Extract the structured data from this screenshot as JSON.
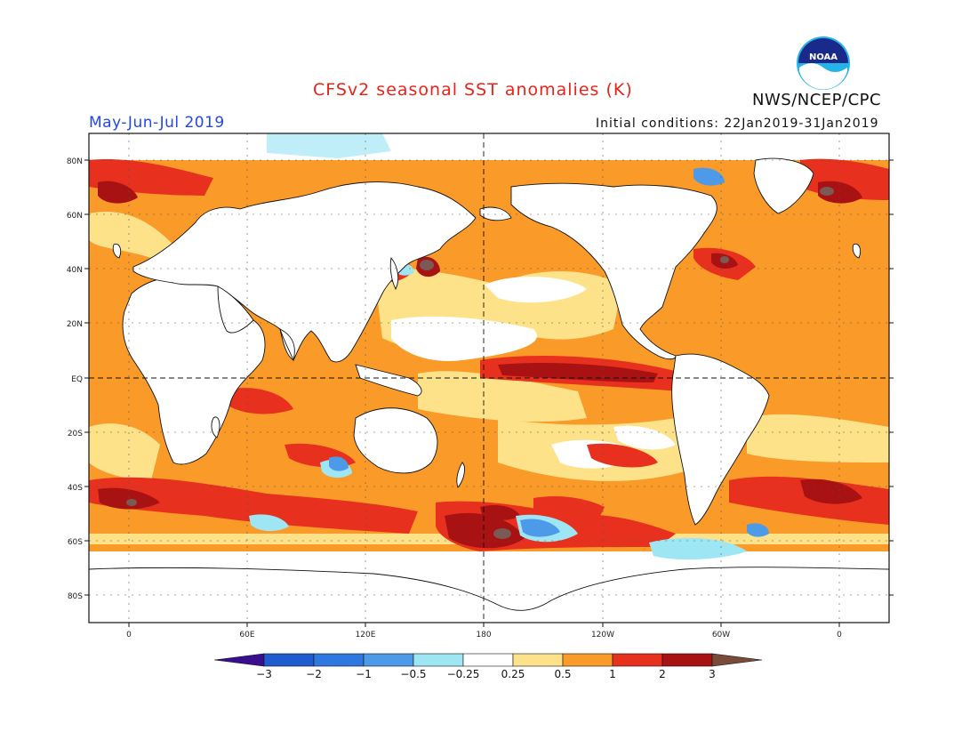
{
  "title": "CFSv2 seasonal SST anomalies (K)",
  "period": "May-Jun-Jul 2019",
  "initial_conditions": "Initial conditions: 22Jan2019-31Jan2019",
  "agency": "NWS/NCEP/CPC",
  "logo_text": "NOAA",
  "lat_labels": [
    "80N",
    "60N",
    "40N",
    "20N",
    "EQ",
    "20S",
    "40S",
    "60S",
    "80S"
  ],
  "lon_labels": [
    "0",
    "60E",
    "120E",
    "180",
    "120W",
    "60W",
    "0"
  ],
  "colorbar": {
    "labels": [
      "-3",
      "-2",
      "-1",
      "-0.5",
      "-0.25",
      "0.25",
      "0.5",
      "1",
      "2",
      "3"
    ],
    "colors": {
      "below_min": "#3a0f8f",
      "bins": [
        "#1f5ccf",
        "#2f78e0",
        "#4d9ae8",
        "#9fe6f5",
        "#ffffff",
        "#fde28a",
        "#fa9a28",
        "#e8301e",
        "#a81212"
      ],
      "above_max": "#7b4b3a"
    }
  },
  "anomaly_palette": {
    "land": "#ffffff",
    "ocean_base": "#fa9a28",
    "warm_light": "#fde28a",
    "warm_strong": "#e8301e",
    "warm_extreme": "#a81212",
    "warm_peak": "#7b5a55",
    "cool_light": "#9fe6f5",
    "cool_mid": "#4d9ae8",
    "cool_strong": "#2f78e0"
  }
}
